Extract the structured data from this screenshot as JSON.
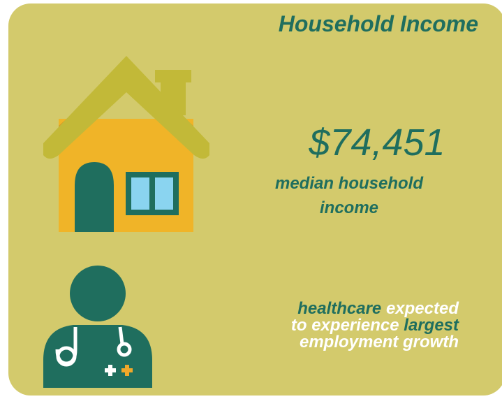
{
  "title": "Household Income",
  "income": {
    "value": "$74,451",
    "caption": [
      "median household",
      "income"
    ]
  },
  "growth": {
    "lines": [
      [
        {
          "text": "healthcare",
          "accent": true
        },
        {
          "text": " expected",
          "accent": false
        }
      ],
      [
        {
          "text": "to experience ",
          "accent": false
        },
        {
          "text": "largest",
          "accent": true
        }
      ],
      [
        {
          "text": "employment growth",
          "accent": false
        }
      ]
    ]
  }
}
